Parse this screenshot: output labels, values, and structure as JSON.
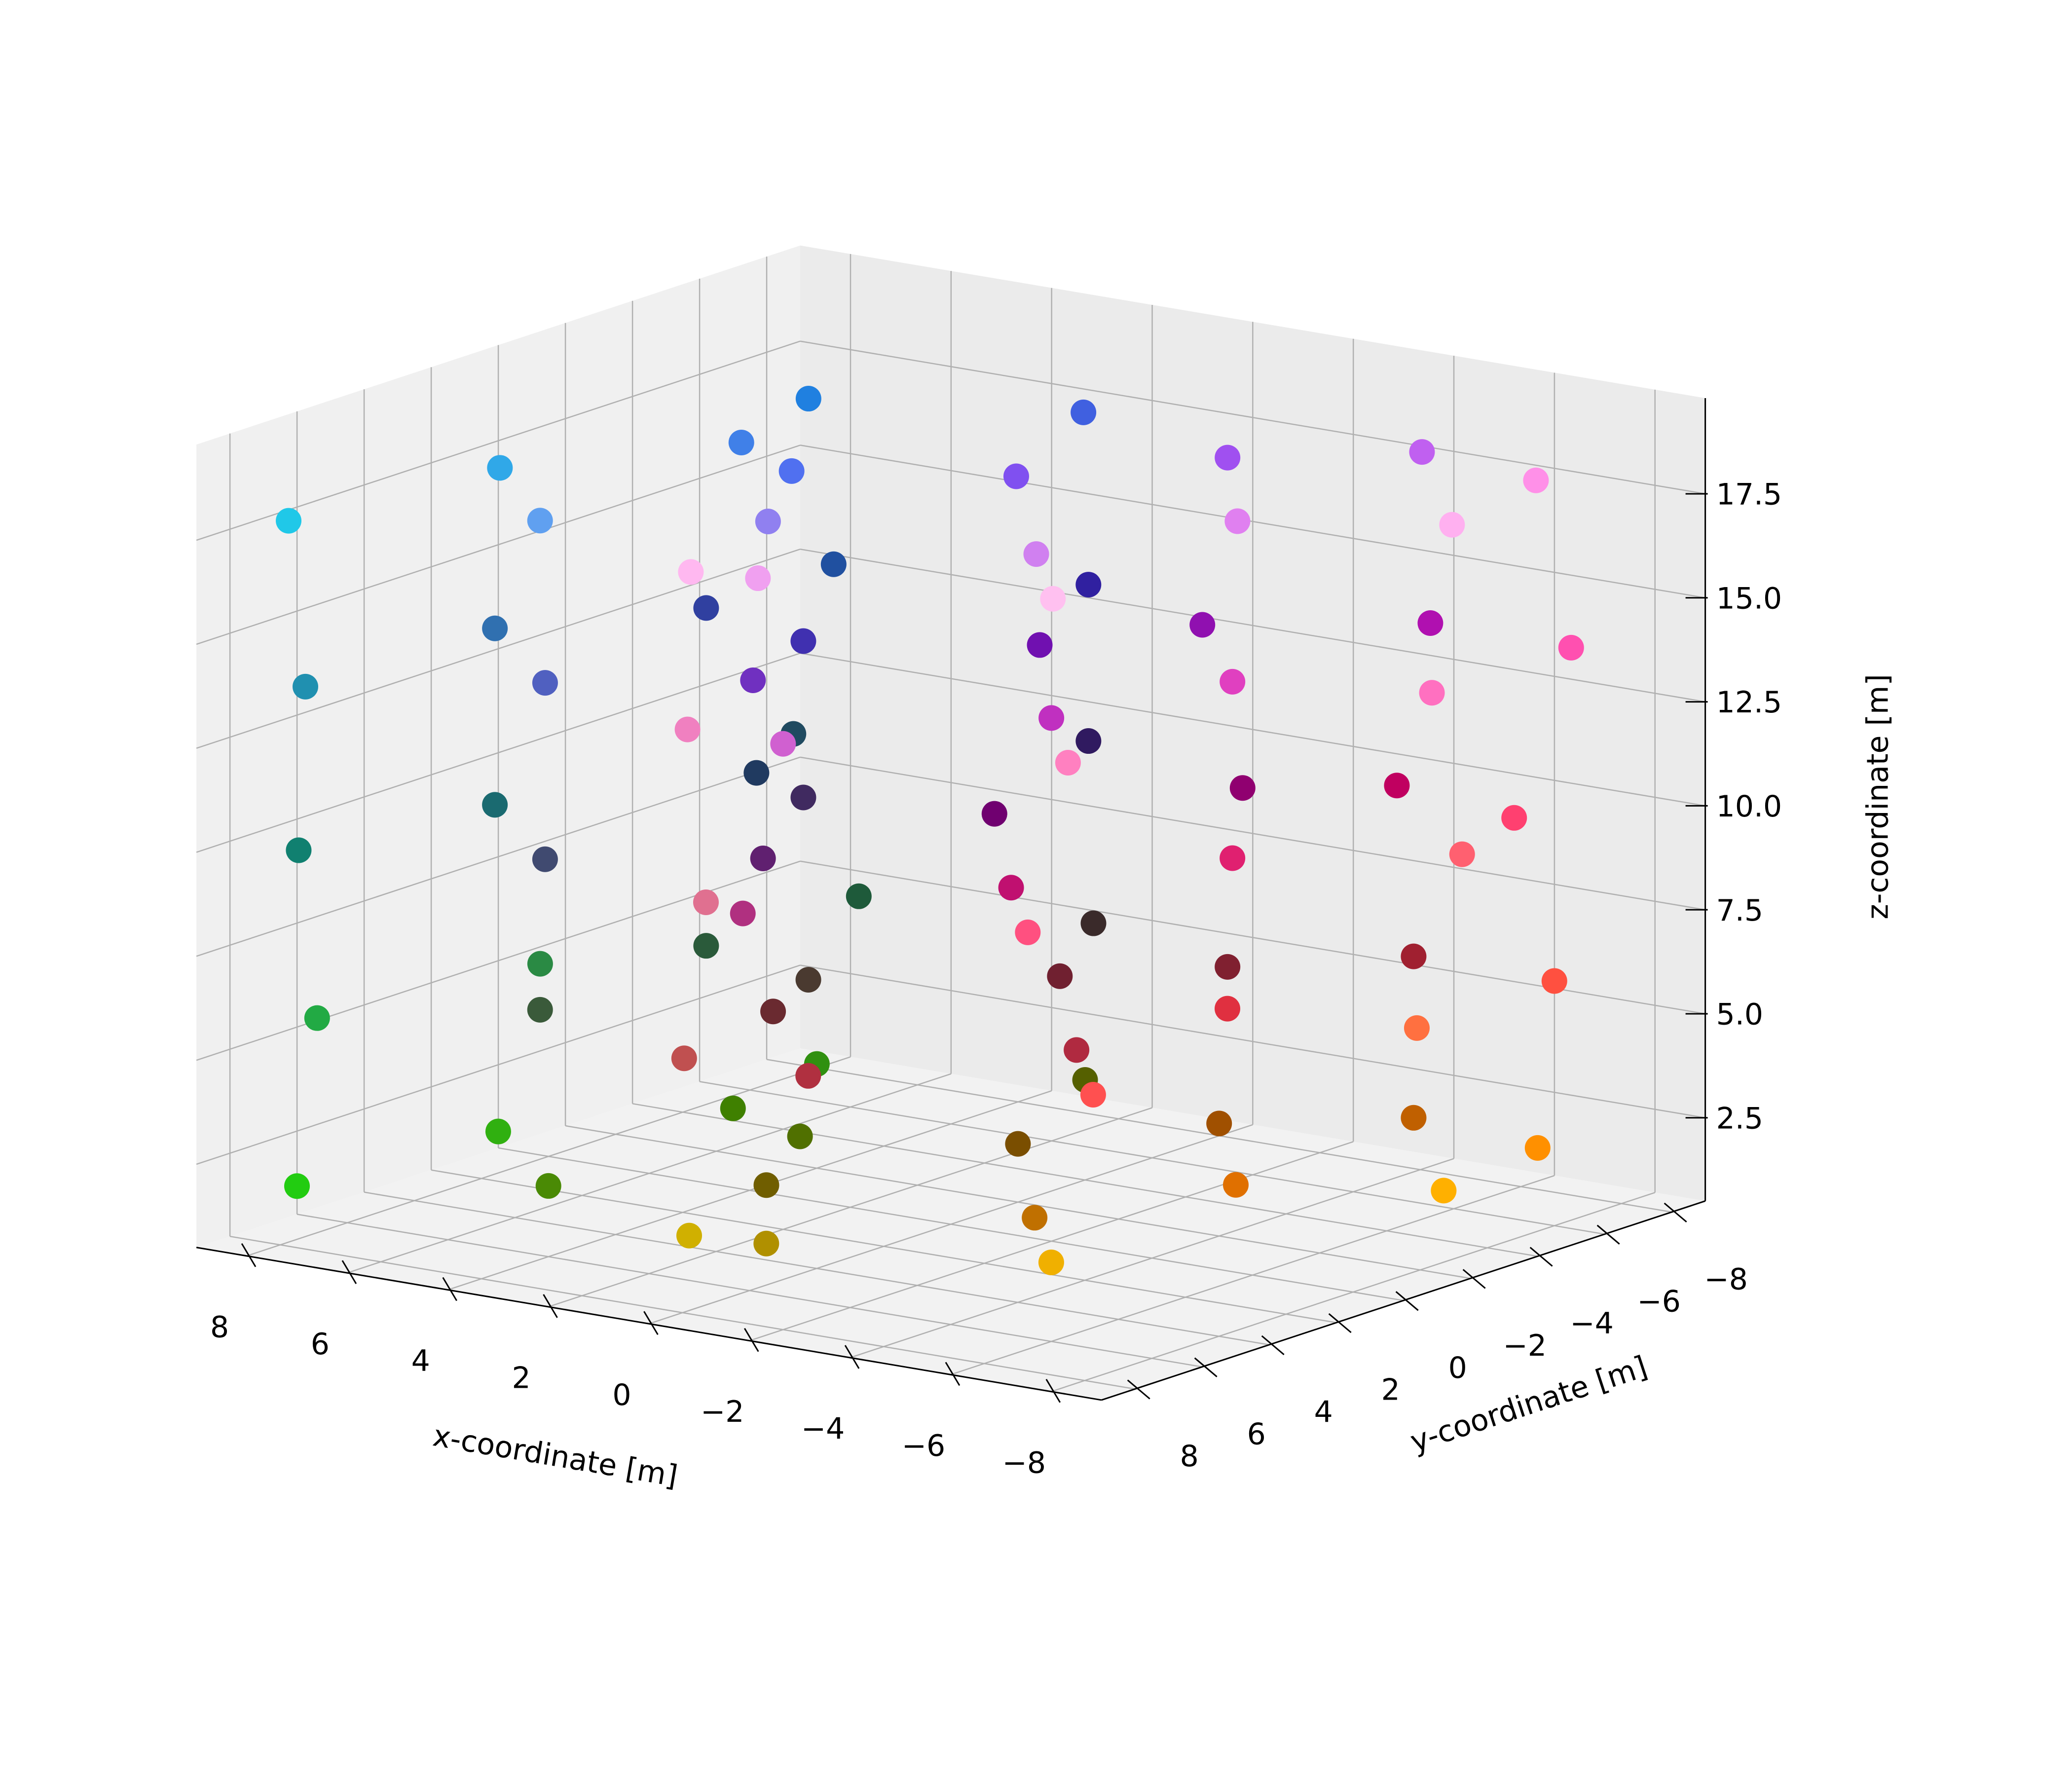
{
  "chart_data": {
    "type": "scatter3d",
    "xlabel": "x-coordinate [m]",
    "ylabel": "y-coordinate [m]",
    "zlabel": "z-coordinate [m]",
    "xlim": [
      -9,
      9
    ],
    "ylim": [
      -9,
      9
    ],
    "zlim": [
      0.5,
      19.8
    ],
    "xticks": [
      {
        "value": -8,
        "label": "−8"
      },
      {
        "value": -6,
        "label": "−6"
      },
      {
        "value": -4,
        "label": "−4"
      },
      {
        "value": -2,
        "label": "−2"
      },
      0,
      2,
      4,
      6,
      8
    ],
    "yticks": [
      {
        "value": -8,
        "label": "−8"
      },
      {
        "value": -6,
        "label": "−6"
      },
      {
        "value": -4,
        "label": "−4"
      },
      {
        "value": -2,
        "label": "−2"
      },
      0,
      2,
      4,
      6,
      8
    ],
    "zticks": [
      2.5,
      {
        "value": 5,
        "label": "5.0"
      },
      7.5,
      {
        "value": 10,
        "label": "10.0"
      },
      12.5,
      {
        "value": 15,
        "label": "15.0"
      },
      17.5
    ],
    "grid": true,
    "x": [
      7.8,
      7,
      6,
      4,
      3,
      2,
      1,
      0,
      -1,
      -2,
      -3,
      -5,
      -6,
      -7,
      -7.8,
      5,
      -4,
      0,
      7.6,
      6.5,
      5.5,
      4.5,
      2.5,
      1.5,
      1.2,
      -0.5,
      -1.5,
      -2.5,
      -3.5,
      -4.5,
      -6.5,
      -7.2,
      -7.6,
      5.2,
      -4.2,
      0.5,
      7.9,
      6.8,
      6.2,
      3.8,
      3.2,
      2.2,
      0.8,
      0.2,
      -0.8,
      -2.2,
      -2.8,
      -5.2,
      -5.8,
      -6.8,
      -7.9,
      4.8,
      -3.8,
      -0.2,
      7.7,
      7.2,
      5.8,
      4.2,
      2.8,
      1.8,
      1.4,
      -0.3,
      -1.2,
      -1.8,
      -3.2,
      -4.8,
      -6.2,
      -7.4,
      -7.7,
      5.4,
      -4.4,
      0.3,
      7.9,
      6.9,
      6.1,
      4.1,
      3.1,
      2.1,
      0.9,
      0.1,
      -0.9,
      -2.1,
      -3.1,
      -5.1,
      -6.1,
      -6.9,
      -7.9,
      4.9,
      -4.1,
      -0.1
    ],
    "y": [
      7.8,
      3,
      -5,
      6,
      0,
      -7,
      4,
      -2,
      7,
      -5,
      2,
      -1,
      6,
      -7,
      -3,
      -1,
      -7.8,
      7.8,
      7.5,
      2.5,
      -5.5,
      5.5,
      0.5,
      -6.5,
      3.5,
      -2.5,
      6.5,
      -4.5,
      1.5,
      -1.5,
      5.5,
      -7.2,
      -2.5,
      -0.5,
      -7.5,
      7.2,
      7.6,
      3.4,
      -4.6,
      6.4,
      -0.4,
      -7.4,
      4.4,
      -1.6,
      7.4,
      -5.4,
      2.4,
      -0.6,
      6.4,
      -6.6,
      -3.4,
      -1.4,
      -7.6,
      7.6,
      7.7,
      2.8,
      -5.2,
      5.8,
      0.2,
      -6.8,
      3.8,
      -2.2,
      6.8,
      -4.8,
      1.8,
      -1.2,
      5.8,
      -7.4,
      -2.8,
      -0.8,
      -7.7,
      7.4,
      7.9,
      3.1,
      -4.9,
      6.1,
      0.1,
      -7.1,
      4.1,
      -2.1,
      7.1,
      -5.1,
      2.1,
      -0.9,
      6.1,
      -7.1,
      -3.1,
      -1.1,
      -7.9,
      7.9
    ],
    "z": [
      1.9,
      2.1,
      1.8,
      2.2,
      2,
      1.7,
      2.3,
      1.9,
      2.1,
      2,
      1.8,
      2.2,
      2.4,
      1.9,
      2.1,
      2,
      1.8,
      2.3,
      5.9,
      6.1,
      5.8,
      6.2,
      6,
      5.7,
      6.3,
      5.9,
      6.1,
      6,
      5.8,
      6.2,
      6.4,
      5.9,
      6.1,
      6,
      5.8,
      6.3,
      9.9,
      10.1,
      9.8,
      10.2,
      10,
      9.7,
      10.3,
      9.9,
      10.1,
      10,
      9.8,
      10.2,
      10.4,
      9.9,
      10.1,
      10,
      9.8,
      10.3,
      13.9,
      14.1,
      13.8,
      14.2,
      14,
      13.7,
      14.3,
      13.9,
      14.1,
      14,
      13.8,
      14.2,
      14.4,
      13.9,
      14.1,
      14,
      13.8,
      14.3,
      17.9,
      18.1,
      17.8,
      18.2,
      18,
      17.7,
      18.3,
      17.9,
      18.1,
      18,
      17.8,
      18.2,
      18.4,
      17.9,
      18.1,
      18,
      17.8,
      18.3
    ],
    "colors": [
      "#22cc11",
      "#30b010",
      "#309010",
      "#4a8a05",
      "#507000",
      "#556000",
      "#705e00",
      "#7a4e00",
      "#b09000",
      "#a05000",
      "#c07000",
      "#e07000",
      "#f0b000",
      "#ff9000",
      "#ffb000",
      "#3f8000",
      "#c06000",
      "#d0b000",
      "#22aa44",
      "#2a8a44",
      "#1e5a3a",
      "#3a5a3a",
      "#4a3a30",
      "#3a2a2a",
      "#6a2a30",
      "#702030",
      "#b03040",
      "#802030",
      "#b02a40",
      "#e03040",
      "#ff5050",
      "#ff5040",
      "#ff7040",
      "#2a5a3a",
      "#a02030",
      "#c05050",
      "#108070",
      "#1a6a70",
      "#204a60",
      "#404a70",
      "#402a60",
      "#301a60",
      "#602070",
      "#700070",
      "#b03080",
      "#900070",
      "#c01070",
      "#e02070",
      "#ff5080",
      "#ff4070",
      "#ff6070",
      "#203a60",
      "#c00060",
      "#e07090",
      "#2090b0",
      "#3070b0",
      "#2050a0",
      "#5060c0",
      "#4030b0",
      "#3020a0",
      "#7030c0",
      "#7010b0",
      "#d060d0",
      "#9010b0",
      "#c030c0",
      "#e040c0",
      "#ff80c0",
      "#ff50b0",
      "#ff70c0",
      "#3040a0",
      "#b010b0",
      "#f080c0",
      "#20c8e8",
      "#30a8e8",
      "#2080e0",
      "#60a0f0",
      "#5070f0",
      "#4060e0",
      "#9080f0",
      "#8050f0",
      "#f0a0f0",
      "#a050f0",
      "#d080f0",
      "#e080f0",
      "#ffc0f0",
      "#ff90e8",
      "#ffb0f0",
      "#4080e8",
      "#c060f0",
      "#ffb8f0"
    ]
  }
}
